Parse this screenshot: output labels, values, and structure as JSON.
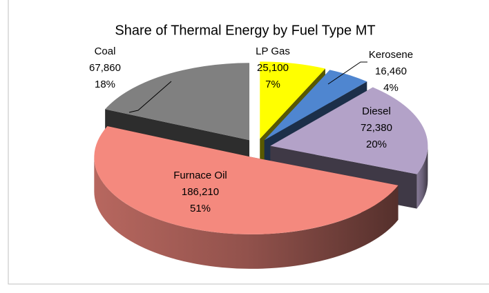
{
  "chart_data": {
    "type": "pie3d",
    "title": "Share of Thermal Energy by Fuel Type MT",
    "categories": [
      "LP Gas",
      "Kerosene",
      "Diesel",
      "Furnace Oil",
      "Coal"
    ],
    "values": [
      25100,
      16460,
      72380,
      186210,
      67860
    ],
    "value_labels": [
      "25,100",
      "16,460",
      "72,380",
      "186,210",
      "67,860"
    ],
    "percent_labels": [
      "7%",
      "4%",
      "20%",
      "51%",
      "18%"
    ],
    "colors": [
      "#ffff00",
      "#4f86d0",
      "#b3a2c8",
      "#f4897e",
      "#808080"
    ]
  }
}
